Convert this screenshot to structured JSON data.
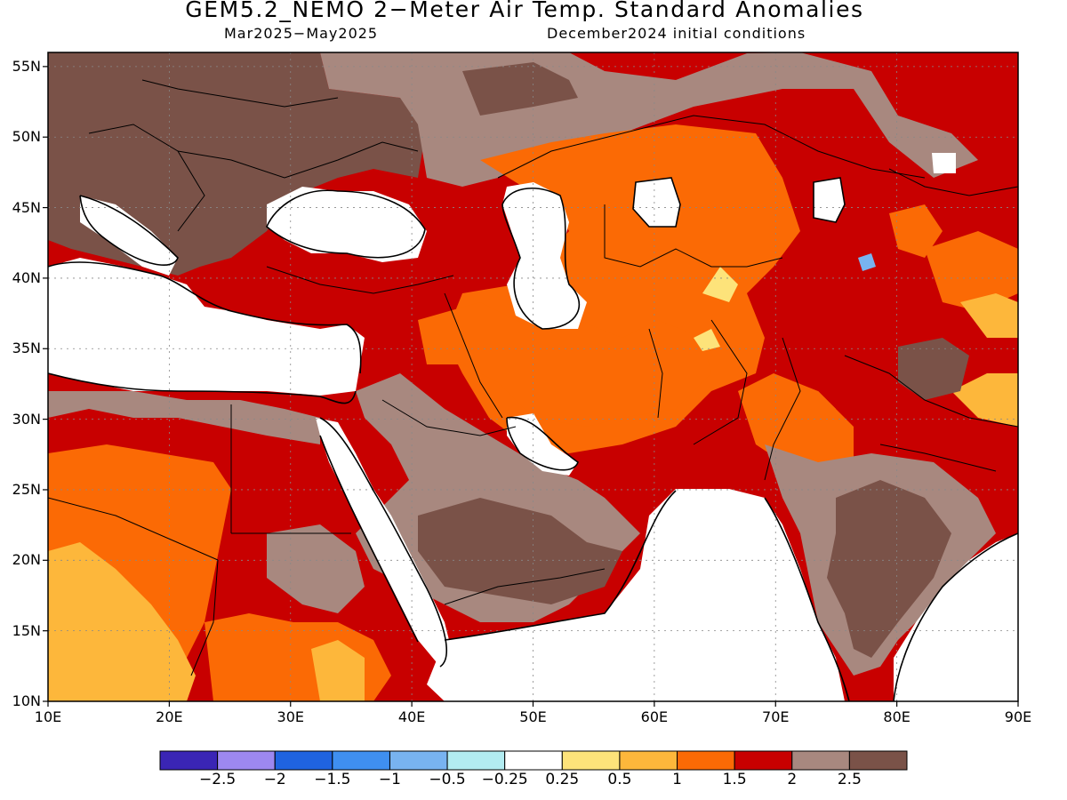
{
  "title": "GEM5.2_NEMO 2−Meter Air Temp. Standard Anomalies",
  "subtitle_left": "Mar2025−May2025",
  "subtitle_right": "December2024 initial conditions",
  "lat_labels": [
    "55N",
    "50N",
    "45N",
    "40N",
    "35N",
    "30N",
    "25N",
    "20N",
    "15N",
    "10N"
  ],
  "lon_labels": [
    "10E",
    "20E",
    "30E",
    "40E",
    "50E",
    "60E",
    "70E",
    "80E",
    "90E"
  ],
  "colorbar": {
    "colors": [
      "#3a25b5",
      "#9d88f0",
      "#1f63e0",
      "#3f8ff0",
      "#78b3f0",
      "#b2ecf1",
      "#ffffff",
      "#fde37a",
      "#fdb73b",
      "#fb6a05",
      "#c80000",
      "#a8887f",
      "#7a5248"
    ],
    "labels": [
      "−2.5",
      "−2",
      "−1.5",
      "−1",
      "−0.5",
      "−0.25",
      "0.25",
      "0.5",
      "1",
      "1.5",
      "2",
      "2.5"
    ]
  },
  "palette": {
    "white": "#ffffff",
    "yellow": "#fde37a",
    "lightorange": "#fdb73b",
    "orange": "#fb6a05",
    "red": "#c80000",
    "rosybrown": "#a8887f",
    "darkbrown": "#7a5248",
    "lightblue": "#78b3f0"
  },
  "map": {
    "lon_range": [
      10,
      90
    ],
    "lat_range": [
      10,
      56
    ],
    "grid": "dotted"
  }
}
